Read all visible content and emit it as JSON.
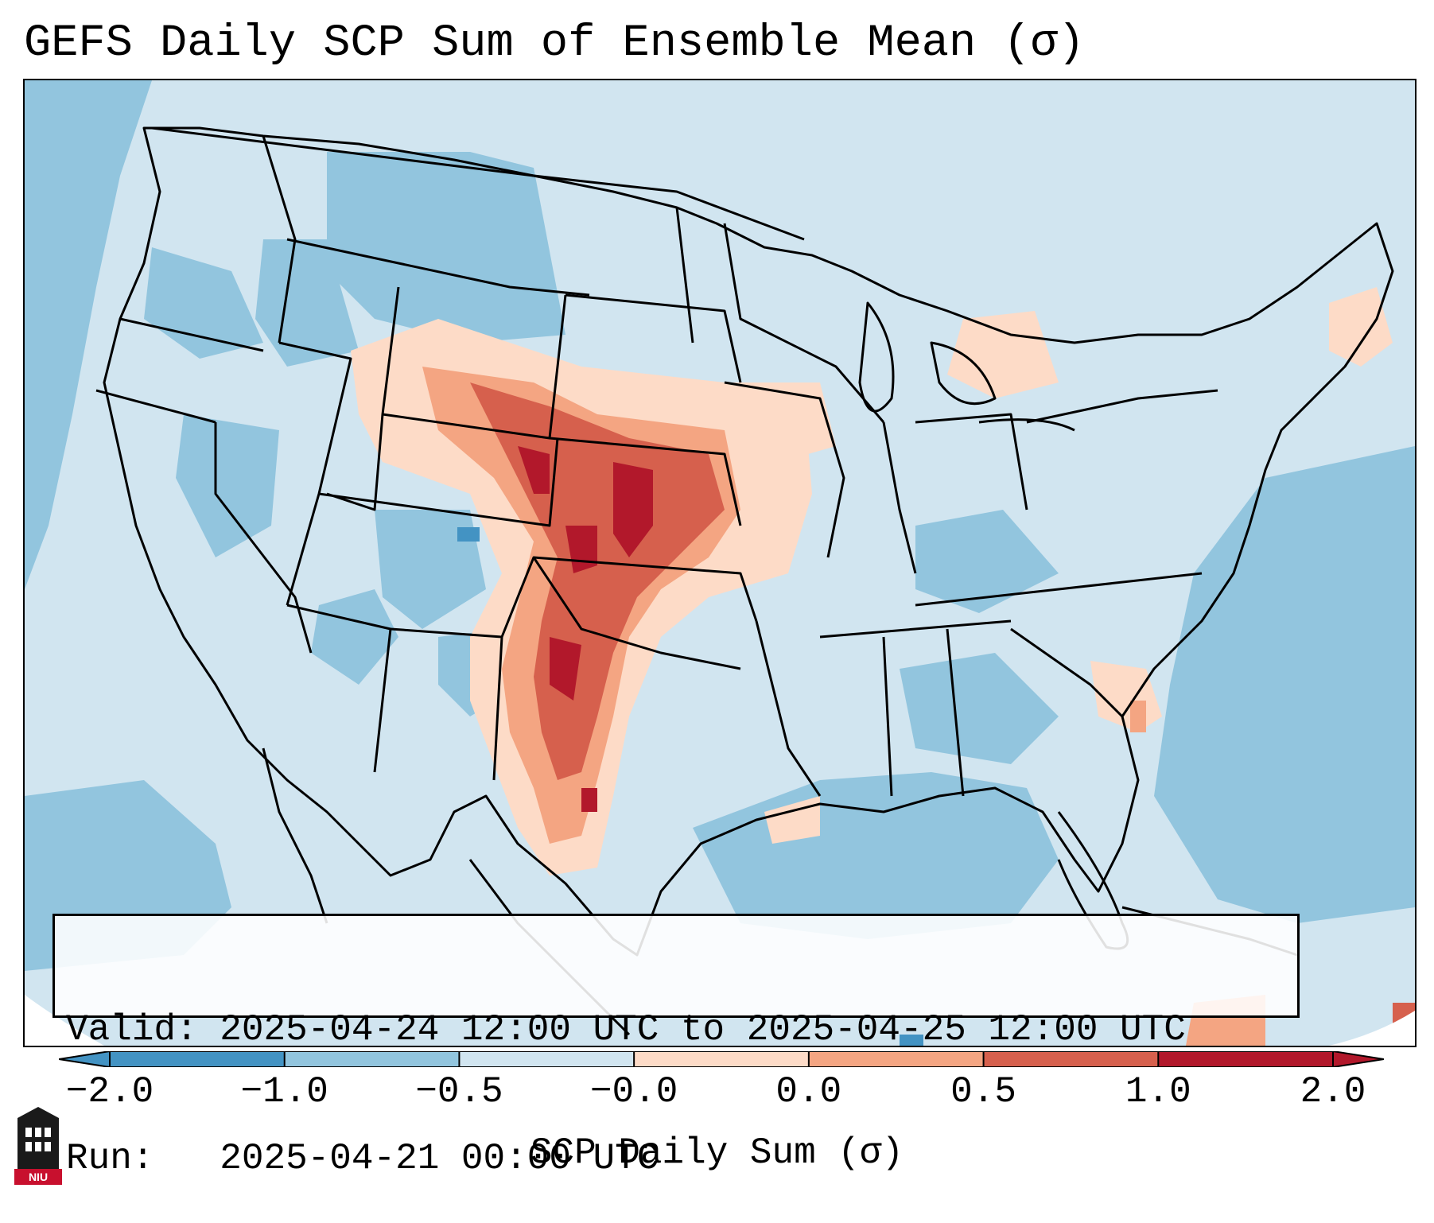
{
  "title": "GEFS Daily SCP Sum of Ensemble Mean (σ)",
  "info": {
    "valid_label": "Valid:",
    "valid_value": "2025-04-24 12:00 UTC to 2025-04-25 12:00 UTC",
    "run_label": "Run:",
    "run_value": "2025-04-21 00:00 UTC"
  },
  "colorbar": {
    "label": "SCP Daily Sum (σ)",
    "tick_labels": [
      "−2.0",
      "−1.0",
      "−0.5",
      "−0.0",
      "0.0",
      "0.5",
      "1.0",
      "2.0"
    ],
    "colors": [
      "#4393c3",
      "#92c5de",
      "#d1e5f0",
      "#fddbc7",
      "#f4a582",
      "#d6604d",
      "#b2182b"
    ],
    "extend": "both"
  },
  "map": {
    "projection": "Lambert conformal, CONUS",
    "colors": {
      "very_low": "#4393c3",
      "low": "#92c5de",
      "near_zero_neg": "#d1e5f0",
      "near_zero_pos": "#fddbc7",
      "mid": "#f4a582",
      "high": "#d6604d",
      "very_high": "#b2182b",
      "outline": "#000000"
    }
  },
  "logo": {
    "text": "NIU"
  }
}
